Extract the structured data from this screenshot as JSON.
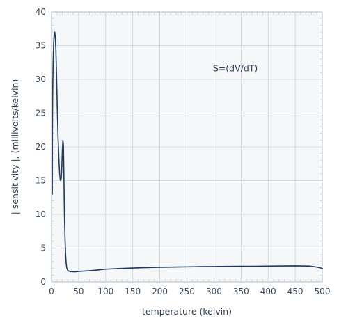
{
  "chart_data": {
    "type": "line",
    "title": "",
    "xlabel": "temperature (kelvin)",
    "ylabel": "| sensitivity |, (millivolts/kelvin)",
    "annotation": "S=(dV/dT)",
    "xlim": [
      0,
      500
    ],
    "ylim": [
      0,
      40
    ],
    "xticks": [
      0,
      50,
      100,
      150,
      200,
      250,
      300,
      350,
      400,
      450,
      500
    ],
    "yticks": [
      0,
      5,
      10,
      15,
      20,
      25,
      30,
      35,
      40
    ],
    "grid": true,
    "series": [
      {
        "color": "#1e3a5f",
        "x": [
          1.4,
          1.6,
          2,
          2.5,
          3,
          4,
          5,
          6,
          7,
          8,
          9,
          10,
          11,
          12,
          13,
          14,
          15,
          16,
          17,
          18,
          19,
          20,
          21,
          22,
          23,
          24,
          25,
          26,
          27,
          28,
          30,
          33,
          37,
          40,
          45,
          50,
          60,
          70,
          80,
          90,
          100,
          125,
          150,
          175,
          200,
          225,
          250,
          275,
          300,
          325,
          350,
          375,
          400,
          425,
          450,
          475,
          490,
          500
        ],
        "y": [
          13,
          22,
          27,
          30,
          32.5,
          35.5,
          36.8,
          37,
          36.2,
          34.5,
          31.5,
          28,
          24.5,
          21.5,
          19.5,
          17.5,
          16,
          15.2,
          15,
          15.4,
          17,
          19.5,
          21,
          20.2,
          15,
          9.5,
          6.2,
          4,
          2.8,
          2.1,
          1.7,
          1.55,
          1.5,
          1.5,
          1.5,
          1.55,
          1.6,
          1.65,
          1.72,
          1.8,
          1.88,
          1.98,
          2.06,
          2.12,
          2.17,
          2.2,
          2.23,
          2.26,
          2.28,
          2.3,
          2.31,
          2.32,
          2.34,
          2.36,
          2.38,
          2.35,
          2.2,
          2.0
        ]
      }
    ]
  }
}
